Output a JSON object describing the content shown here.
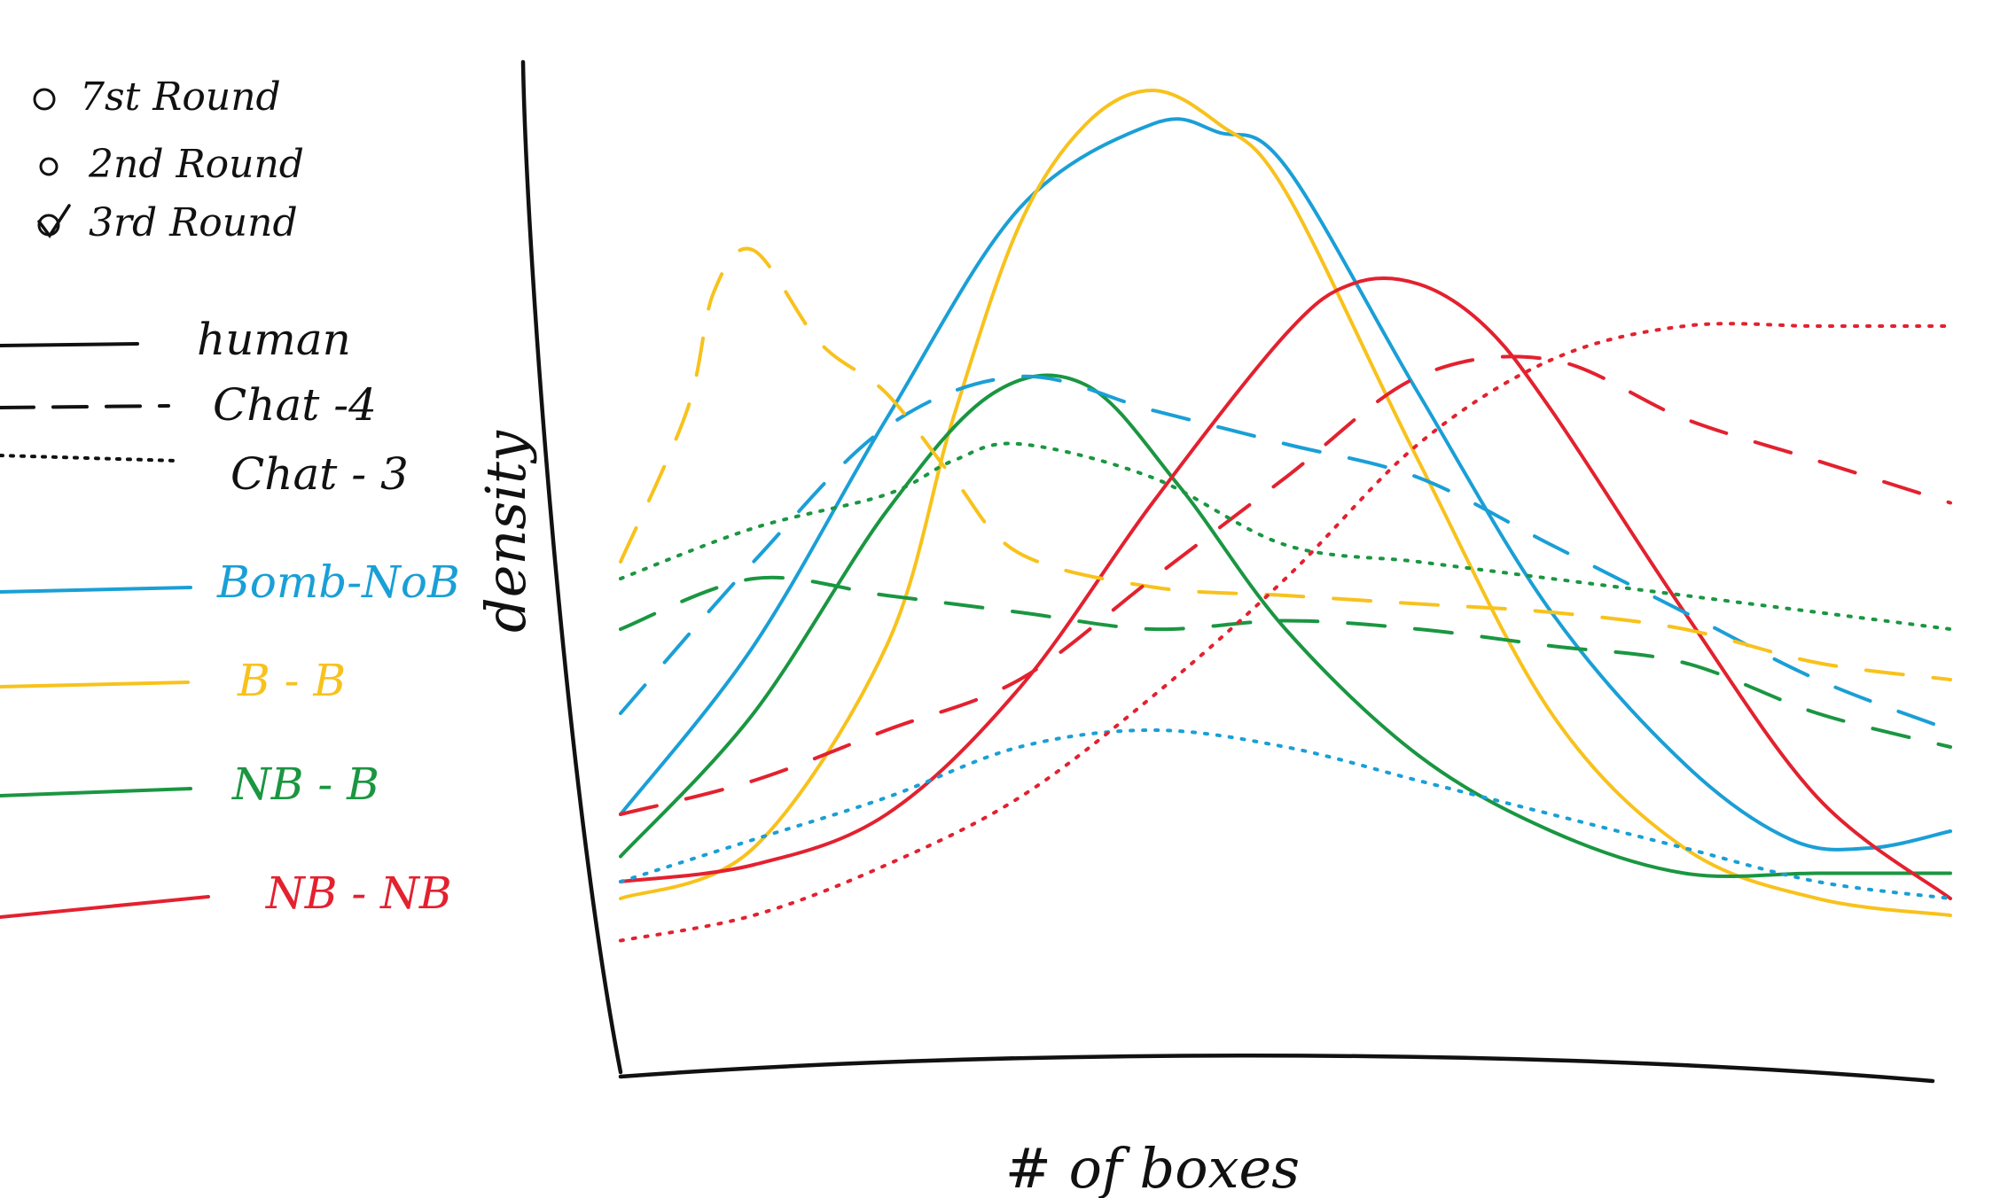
{
  "chart_data": {
    "type": "line",
    "xlabel": "# of boxes",
    "ylabel": "density",
    "grid": false,
    "legend_placement": "left",
    "rounds": [
      {
        "id": "r1",
        "label": "7st Round"
      },
      {
        "id": "r2",
        "label": "2nd Round"
      },
      {
        "id": "r3",
        "label": "3rd Round",
        "checked": true
      }
    ],
    "line_styles": [
      {
        "id": "human",
        "label": "human",
        "dash": "solid"
      },
      {
        "id": "chat4",
        "label": "Chat -4",
        "dash": "dashed"
      },
      {
        "id": "chat3",
        "label": "Chat - 3",
        "dash": "dotted"
      }
    ],
    "conditions": [
      {
        "id": "bomb_nb",
        "label": "Bomb-NoB",
        "color": "#1a9fd6"
      },
      {
        "id": "b_b",
        "label": "B - B",
        "color": "#f8c21c"
      },
      {
        "id": "nb_b",
        "label": "NB - B",
        "color": "#1a9641"
      },
      {
        "id": "nb_nb",
        "label": "NB - NB",
        "color": "#e3212f"
      }
    ],
    "x_range": [
      0,
      100
    ],
    "y_range": [
      0,
      100
    ],
    "series": [
      {
        "condition": "bomb_nb",
        "style": "human",
        "x": [
          0,
          10,
          20,
          30,
          40,
          45,
          50,
          60,
          70,
          80,
          88,
          94,
          100
        ],
        "y": [
          18,
          38,
          65,
          90,
          100,
          99,
          95,
          68,
          42,
          24,
          15,
          14,
          16
        ]
      },
      {
        "condition": "b_b",
        "style": "human",
        "x": [
          0,
          10,
          20,
          25,
          30,
          35,
          40,
          45,
          50,
          60,
          70,
          80,
          90,
          100
        ],
        "y": [
          8,
          14,
          38,
          65,
          88,
          100,
          104,
          100,
          92,
          60,
          30,
          14,
          8,
          6
        ]
      },
      {
        "condition": "nb_b",
        "style": "human",
        "x": [
          0,
          10,
          20,
          28,
          35,
          42,
          50,
          60,
          70,
          80,
          90,
          100
        ],
        "y": [
          13,
          30,
          54,
          68,
          69,
          57,
          40,
          25,
          16,
          11,
          11,
          11
        ]
      },
      {
        "condition": "nb_nb",
        "style": "human",
        "x": [
          0,
          10,
          20,
          30,
          40,
          50,
          55,
          60,
          65,
          70,
          80,
          90,
          100
        ],
        "y": [
          10,
          12,
          18,
          33,
          55,
          75,
          81,
          81,
          76,
          66,
          42,
          20,
          8
        ]
      },
      {
        "condition": "bomb_nb",
        "style": "chat4",
        "x": [
          0,
          10,
          20,
          30,
          40,
          50,
          60,
          70,
          80,
          90,
          100
        ],
        "y": [
          30,
          48,
          64,
          70,
          66,
          62,
          58,
          50,
          42,
          34,
          28
        ]
      },
      {
        "condition": "b_b",
        "style": "chat4",
        "x": [
          0,
          5,
          7,
          10,
          15,
          20,
          25,
          30,
          40,
          50,
          60,
          70,
          80,
          90,
          100
        ],
        "y": [
          48,
          66,
          80,
          85,
          74,
          68,
          58,
          49,
          45,
          44,
          43,
          42,
          40,
          36,
          34
        ]
      },
      {
        "condition": "nb_b",
        "style": "chat4",
        "x": [
          0,
          10,
          20,
          30,
          40,
          50,
          60,
          70,
          80,
          90,
          100
        ],
        "y": [
          40,
          46,
          44,
          42,
          40,
          41,
          40,
          38,
          36,
          30,
          26
        ]
      },
      {
        "condition": "nb_nb",
        "style": "chat4",
        "x": [
          0,
          10,
          20,
          30,
          40,
          50,
          60,
          70,
          80,
          90,
          100
        ],
        "y": [
          18,
          22,
          28,
          34,
          46,
          58,
          70,
          72,
          65,
          60,
          55
        ]
      },
      {
        "condition": "bomb_nb",
        "style": "chat3",
        "x": [
          0,
          10,
          20,
          30,
          40,
          50,
          60,
          70,
          80,
          90,
          100
        ],
        "y": [
          10,
          15,
          20,
          26,
          28,
          26,
          22,
          18,
          14,
          10,
          8
        ]
      },
      {
        "condition": "nb_b",
        "style": "chat3",
        "x": [
          0,
          10,
          20,
          25,
          30,
          40,
          50,
          60,
          70,
          80,
          90,
          100
        ],
        "y": [
          46,
          52,
          56,
          60,
          62,
          58,
          50,
          48,
          46,
          44,
          42,
          40
        ]
      },
      {
        "condition": "nb_nb",
        "style": "chat3",
        "x": [
          0,
          10,
          20,
          30,
          40,
          50,
          60,
          70,
          80,
          90,
          100
        ],
        "y": [
          3,
          6,
          12,
          20,
          32,
          46,
          62,
          72,
          76,
          76,
          76
        ]
      }
    ]
  }
}
